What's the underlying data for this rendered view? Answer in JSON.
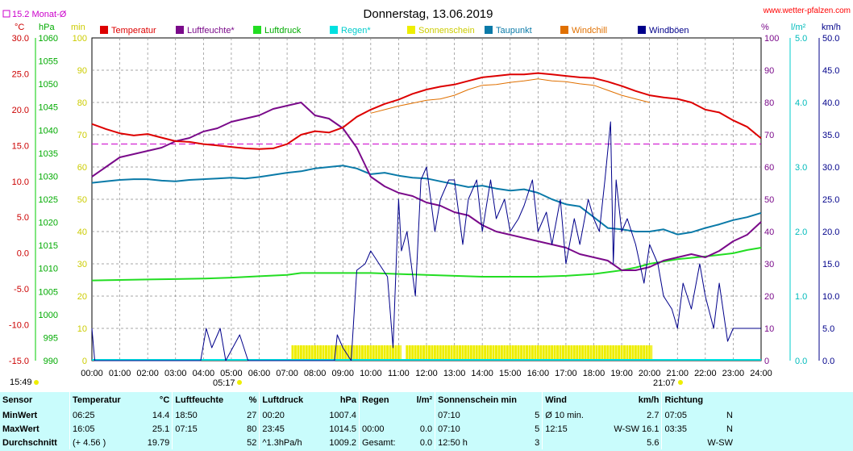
{
  "header": {
    "title": "Donnerstag, 13.06.2019",
    "site": "www.wetter-pfalzen.com",
    "monthly_avg_label": "15.2 Monat-Ø"
  },
  "units": {
    "left": [
      "°C",
      "hPa",
      "min"
    ],
    "right": [
      "%",
      "l/m²",
      "km/h"
    ]
  },
  "legend": [
    {
      "name": "Temperatur",
      "color": "#dd0000"
    },
    {
      "name": "Luftfeuchte*",
      "color": "#7a0a8a"
    },
    {
      "name": "Luftdruck",
      "color": "#22dd22"
    },
    {
      "name": "Regen*",
      "color": "#00e0e0"
    },
    {
      "name": "Sonnenschein",
      "color": "#eeee00"
    },
    {
      "name": "Taupunkt",
      "color": "#0a7aa8"
    },
    {
      "name": "Windchill",
      "color": "#e07000"
    },
    {
      "name": "Windböen",
      "color": "#00008a"
    }
  ],
  "sun_times": {
    "sunrise": "05:17",
    "sunset": "21:07",
    "time_left": "15:49"
  },
  "chart_data": {
    "type": "line",
    "x_ticks": [
      "00:00",
      "01:00",
      "02:00",
      "03:00",
      "04:00",
      "05:00",
      "06:00",
      "07:00",
      "08:00",
      "09:00",
      "10:00",
      "11:00",
      "12:00",
      "13:00",
      "14:00",
      "15:00",
      "16:00",
      "17:00",
      "18:00",
      "19:00",
      "20:00",
      "21:00",
      "22:00",
      "23:00",
      "24:00"
    ],
    "axes": {
      "temp": {
        "min": -15,
        "max": 30,
        "ticks": [
          "30.0",
          "25.0",
          "20.0",
          "15.0",
          "10.0",
          "5.0",
          "0.0",
          "-5.0",
          "-10.0",
          "-15.0"
        ]
      },
      "pressure": {
        "min": 990,
        "max": 1060,
        "ticks": [
          "1060",
          "1055",
          "1050",
          "1045",
          "1040",
          "1035",
          "1030",
          "1025",
          "1020",
          "1015",
          "1010",
          "1005",
          "1000",
          "995",
          "990"
        ]
      },
      "minutes": {
        "min": 0,
        "max": 100,
        "ticks": [
          "100",
          "90",
          "80",
          "70",
          "60",
          "50",
          "40",
          "30",
          "20",
          "10",
          "0"
        ]
      },
      "humidity": {
        "min": 0,
        "max": 100,
        "ticks": [
          "100",
          "90",
          "80",
          "70",
          "60",
          "50",
          "40",
          "30",
          "20",
          "10",
          "0"
        ]
      },
      "rain": {
        "min": 0,
        "max": 5,
        "ticks": [
          "5.0",
          "4.0",
          "3.0",
          "2.0",
          "1.0",
          "0.0"
        ]
      },
      "wind": {
        "min": 0,
        "max": 50,
        "ticks": [
          "50.0",
          "45.0",
          "40.0",
          "35.0",
          "30.0",
          "25.0",
          "20.0",
          "15.0",
          "10.0",
          "5.0",
          "0.0"
        ]
      }
    },
    "monthly_avg_temp": 15.2,
    "series": [
      {
        "name": "Temperatur",
        "axis": "temp",
        "x": [
          0,
          0.5,
          1,
          1.5,
          2,
          2.5,
          3,
          3.5,
          4,
          4.5,
          5,
          5.5,
          6,
          6.5,
          7,
          7.5,
          8,
          8.5,
          9,
          9.5,
          10,
          10.5,
          11,
          11.5,
          12,
          12.5,
          13,
          13.5,
          14,
          14.5,
          15,
          15.5,
          16,
          16.5,
          17,
          17.5,
          18,
          18.5,
          19,
          19.5,
          20,
          20.5,
          21,
          21.5,
          22,
          22.5,
          23,
          23.5,
          24
        ],
        "values": [
          18.0,
          17.3,
          16.7,
          16.4,
          16.6,
          16.1,
          15.6,
          15.5,
          15.2,
          15.0,
          14.8,
          14.6,
          14.5,
          14.6,
          15.2,
          16.5,
          17.0,
          16.8,
          17.5,
          19.0,
          20.0,
          20.8,
          21.4,
          22.2,
          22.8,
          23.2,
          23.5,
          24.0,
          24.5,
          24.7,
          24.9,
          24.9,
          25.1,
          24.9,
          24.7,
          24.5,
          24.4,
          23.9,
          23.3,
          22.6,
          22.0,
          21.7,
          21.5,
          21.0,
          20.0,
          19.6,
          18.5,
          17.6,
          16.0
        ]
      },
      {
        "name": "Luftfeuchte*",
        "axis": "humidity",
        "x": [
          0,
          0.5,
          1,
          1.5,
          2,
          2.5,
          3,
          3.5,
          4,
          4.5,
          5,
          5.5,
          6,
          6.5,
          7,
          7.5,
          8,
          8.5,
          9,
          9.5,
          10,
          10.5,
          11,
          11.5,
          12,
          12.5,
          13,
          13.5,
          14,
          14.5,
          15,
          15.5,
          16,
          16.5,
          17,
          17.5,
          18,
          18.5,
          19,
          19.5,
          20,
          20.5,
          21,
          21.5,
          22,
          22.5,
          23,
          23.5,
          24
        ],
        "values": [
          57,
          60,
          63,
          64,
          65,
          66,
          68,
          69,
          71,
          72,
          74,
          75,
          76,
          78,
          79,
          80,
          76,
          75,
          72,
          66,
          57,
          54,
          52,
          51,
          49,
          48,
          46,
          45,
          42,
          40,
          39,
          38,
          37,
          36,
          35,
          33,
          32,
          31,
          28,
          28,
          29,
          31,
          32,
          33,
          32,
          34,
          37,
          39,
          43
        ]
      },
      {
        "name": "Luftdruck",
        "axis": "pressure",
        "x": [
          0,
          1,
          2,
          3,
          4,
          5,
          6,
          7,
          7.5,
          8,
          9,
          10,
          11,
          12,
          13,
          14,
          15,
          16,
          17,
          18,
          19,
          19.5,
          20,
          20.5,
          21,
          22,
          23,
          23.5,
          24
        ],
        "values": [
          1007.4,
          1007.5,
          1007.6,
          1007.7,
          1007.8,
          1008.0,
          1008.3,
          1008.6,
          1009.0,
          1009.0,
          1009.0,
          1009.0,
          1008.8,
          1008.6,
          1008.4,
          1008.2,
          1008.2,
          1008.2,
          1008.4,
          1008.8,
          1009.6,
          1010.2,
          1011.0,
          1011.5,
          1012.0,
          1012.6,
          1013.3,
          1014.0,
          1014.5
        ]
      },
      {
        "name": "Taupunkt",
        "axis": "temp",
        "x": [
          0,
          0.5,
          1,
          1.5,
          2,
          2.5,
          3,
          3.5,
          4,
          4.5,
          5,
          5.5,
          6,
          6.5,
          7,
          7.5,
          8,
          8.5,
          9,
          9.5,
          10,
          10.5,
          11,
          11.5,
          12,
          12.5,
          13,
          13.5,
          14,
          14.5,
          15,
          15.5,
          16,
          16.5,
          17,
          17.5,
          18,
          18.5,
          19,
          19.5,
          20,
          20.5,
          21,
          21.5,
          22,
          22.5,
          23,
          23.5,
          24
        ],
        "values": [
          9.8,
          10.0,
          10.2,
          10.3,
          10.3,
          10.1,
          10.0,
          10.2,
          10.3,
          10.4,
          10.5,
          10.4,
          10.6,
          10.9,
          11.2,
          11.4,
          11.8,
          12.0,
          12.2,
          11.8,
          11.0,
          11.2,
          10.8,
          10.5,
          10.4,
          10.0,
          9.6,
          9.2,
          9.4,
          9.0,
          8.7,
          8.9,
          8.4,
          7.5,
          6.8,
          6.5,
          5.0,
          3.5,
          3.3,
          3.0,
          3.0,
          3.3,
          2.6,
          2.9,
          3.5,
          4.0,
          4.6,
          5.0,
          5.6
        ]
      },
      {
        "name": "Windchill",
        "axis": "temp",
        "x": [
          10,
          10.5,
          11,
          11.5,
          12,
          12.5,
          13,
          13.5,
          14,
          14.5,
          15,
          15.5,
          16,
          16.5,
          17,
          17.5,
          18,
          18.5,
          19,
          19.5,
          20
        ],
        "values": [
          19.5,
          20.0,
          20.5,
          20.9,
          21.3,
          21.5,
          22.0,
          22.8,
          23.4,
          23.5,
          23.8,
          24.0,
          24.3,
          24.0,
          23.9,
          23.6,
          23.4,
          22.7,
          22.0,
          21.5,
          21.0
        ]
      },
      {
        "name": "Windböen",
        "axis": "wind",
        "x": [
          0,
          0.1,
          0.3,
          3.9,
          4.1,
          4.3,
          4.6,
          4.8,
          5.3,
          5.6,
          8.7,
          8.8,
          9.0,
          9.3,
          9.5,
          9.8,
          10.0,
          10.3,
          10.6,
          10.8,
          11.0,
          11.1,
          11.3,
          11.6,
          11.8,
          12.0,
          12.3,
          12.5,
          12.8,
          13.0,
          13.3,
          13.5,
          13.8,
          14.0,
          14.3,
          14.5,
          14.8,
          15.0,
          15.3,
          15.5,
          15.8,
          16.0,
          16.3,
          16.5,
          16.8,
          17.0,
          17.3,
          17.5,
          17.8,
          18.0,
          18.2,
          18.4,
          18.6,
          18.7,
          18.8,
          19.0,
          19.2,
          19.5,
          19.8,
          20.0,
          20.3,
          20.5,
          20.8,
          21.0,
          21.2,
          21.5,
          21.8,
          22.0,
          22.3,
          22.5,
          22.8,
          23.0,
          23.3,
          23.5,
          23.8,
          24.0
        ],
        "values": [
          5,
          0,
          0,
          0,
          5,
          2,
          5,
          0,
          4,
          0,
          0,
          4,
          2,
          0,
          14,
          15,
          17,
          15,
          13,
          2,
          25,
          17,
          20,
          10,
          28,
          30,
          20,
          25,
          28,
          28,
          18,
          25,
          28,
          20,
          28,
          22,
          25,
          20,
          22,
          24,
          28,
          20,
          23,
          18,
          25,
          15,
          22,
          18,
          25,
          22,
          20,
          28,
          37,
          15,
          28,
          20,
          22,
          18,
          12,
          18,
          15,
          10,
          8,
          5,
          12,
          8,
          15,
          10,
          5,
          12,
          3,
          5,
          5,
          5,
          5,
          5
        ]
      }
    ],
    "sunshine_blocks": [
      [
        7.15,
        11.1
      ],
      [
        11.25,
        20.1
      ]
    ]
  },
  "stats": {
    "headers": [
      "Sensor",
      "Temperatur",
      "°C",
      "Luftfeuchte",
      "%",
      "Luftdruck",
      "hPa",
      "Regen",
      "l/m²",
      "Sonnenschein min",
      "Wind",
      "km/h",
      "Richtung"
    ],
    "rows": [
      {
        "label": "MinWert",
        "cells": [
          "06:25",
          "14.4",
          "18:50",
          "27",
          "00:20",
          "1007.4",
          "",
          "",
          "07:10",
          "5",
          "Ø 10 min.",
          "2.7",
          "07:05",
          "N"
        ]
      },
      {
        "label": "MaxWert",
        "cells": [
          "16:05",
          "25.1",
          "07:15",
          "80",
          "23:45",
          "1014.5",
          "00:00",
          "0.0",
          "07:10",
          "5",
          "12:15",
          "W-SW 16.1",
          "03:35",
          "N"
        ]
      },
      {
        "label": "Durchschnitt",
        "cells": [
          "(+ 4.56 )",
          "19.79",
          "",
          "52",
          "^1.3hPa/h",
          "1009.2",
          "Gesamt:",
          "0.0",
          "12:50 h",
          "3",
          "",
          "5.6",
          "",
          "W-SW"
        ]
      }
    ]
  }
}
